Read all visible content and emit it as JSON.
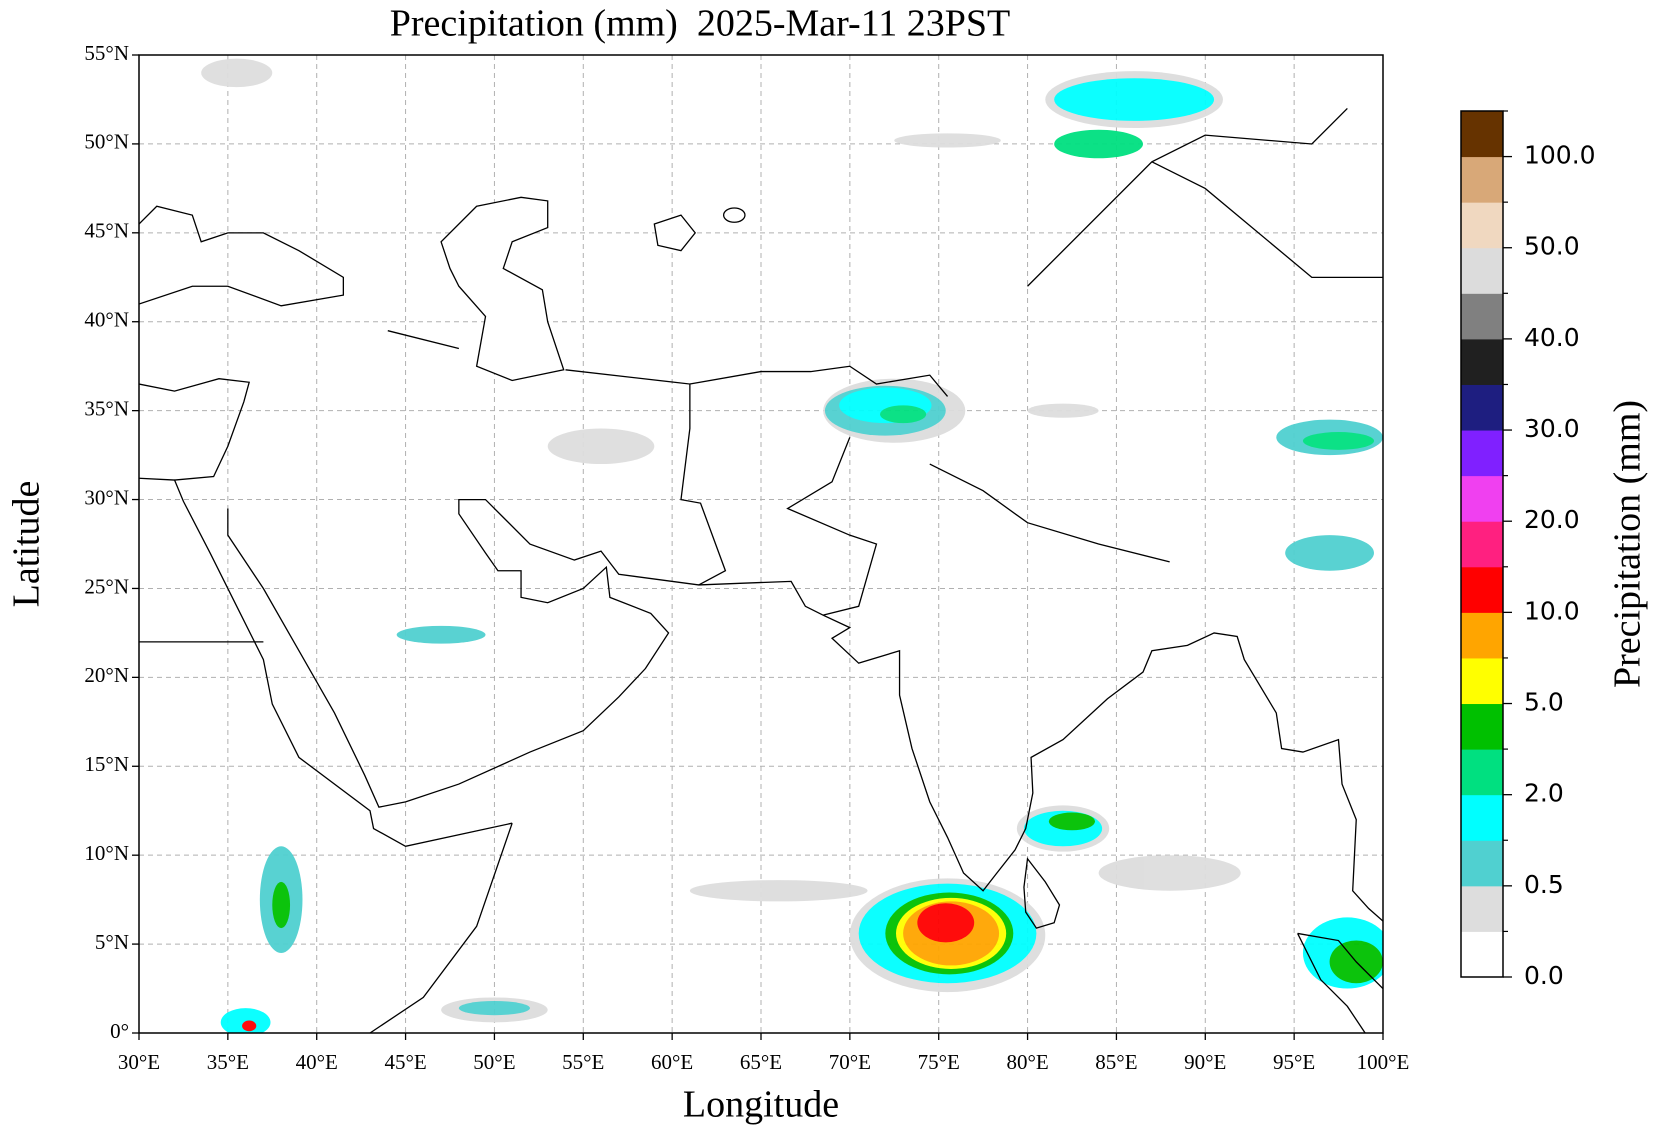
{
  "chart_data": {
    "type": "map",
    "title": "Precipitation (mm)  2025-Mar-11 23PST",
    "x_label": "Longitude",
    "y_label": "Latitude",
    "xlim": [
      30,
      100
    ],
    "ylim": [
      0,
      55
    ],
    "xticks": [
      {
        "value": 30,
        "label": "30°E"
      },
      {
        "value": 35,
        "label": "35°E"
      },
      {
        "value": 40,
        "label": "40°E"
      },
      {
        "value": 45,
        "label": "45°E"
      },
      {
        "value": 50,
        "label": "50°E"
      },
      {
        "value": 55,
        "label": "55°E"
      },
      {
        "value": 60,
        "label": "60°E"
      },
      {
        "value": 65,
        "label": "65°E"
      },
      {
        "value": 70,
        "label": "70°E"
      },
      {
        "value": 75,
        "label": "75°E"
      },
      {
        "value": 80,
        "label": "80°E"
      },
      {
        "value": 85,
        "label": "85°E"
      },
      {
        "value": 90,
        "label": "90°E"
      },
      {
        "value": 95,
        "label": "95°E"
      },
      {
        "value": 100,
        "label": "100°E"
      }
    ],
    "yticks": [
      {
        "value": 0,
        "label": "0°"
      },
      {
        "value": 5,
        "label": "5°N"
      },
      {
        "value": 10,
        "label": "10°N"
      },
      {
        "value": 15,
        "label": "15°N"
      },
      {
        "value": 20,
        "label": "20°N"
      },
      {
        "value": 25,
        "label": "25°N"
      },
      {
        "value": 30,
        "label": "30°N"
      },
      {
        "value": 35,
        "label": "35°N"
      },
      {
        "value": 40,
        "label": "40°N"
      },
      {
        "value": 45,
        "label": "45°N"
      },
      {
        "value": 50,
        "label": "50°N"
      },
      {
        "value": 55,
        "label": "55°N"
      }
    ],
    "grid": true,
    "colorbar": {
      "label": "Precipitation (mm)",
      "colors": [
        "#ffffff",
        "#dddddd",
        "#50d0d0",
        "#00ffff",
        "#00e080",
        "#00c000",
        "#ffff00",
        "#ffa500",
        "#ff0000",
        "#ff2080",
        "#f040f0",
        "#8020ff",
        "#1e1e80",
        "#202020",
        "#808080",
        "#dcdcdc",
        "#f0d8c0",
        "#d8a878",
        "#663300"
      ],
      "ticks": [
        {
          "value": 0,
          "label": "0.0"
        },
        {
          "value": 0.5,
          "label": "0.5"
        },
        {
          "value": 2,
          "label": "2.0"
        },
        {
          "value": 5,
          "label": "5.0"
        },
        {
          "value": 10,
          "label": "10.0"
        },
        {
          "value": 20,
          "label": "20.0"
        },
        {
          "value": 30,
          "label": "30.0"
        },
        {
          "value": 40,
          "label": "40.0"
        },
        {
          "value": 50,
          "label": "50.0"
        },
        {
          "value": 100,
          "label": "100.0"
        }
      ]
    }
  }
}
